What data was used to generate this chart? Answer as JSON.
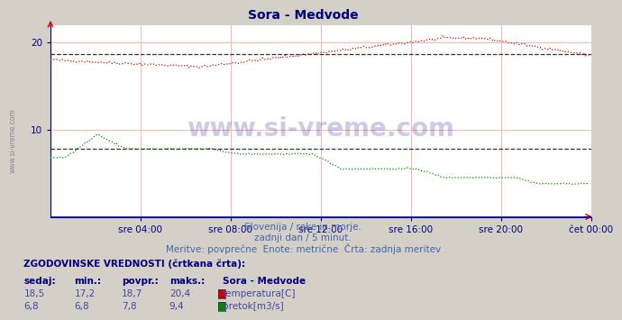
{
  "title": "Sora - Medvode",
  "title_color": "#000080",
  "background_color": "#d4d0c8",
  "plot_bg_color": "#ffffff",
  "grid_color": "#ffb0b0",
  "axis_color": "#000080",
  "text_color": "#000080",
  "subtitle_color": "#4466aa",
  "xlabel_ticks": [
    "sre 04:00",
    "sre 08:00",
    "sre 12:00",
    "sre 16:00",
    "sre 20:00",
    "čet 00:00"
  ],
  "xlim": [
    0,
    288
  ],
  "ylim": [
    0,
    22
  ],
  "subtitle1": "Slovenija / reke in morje.",
  "subtitle2": "zadnji dan / 5 minut.",
  "subtitle3": "Meritve: povprečne  Enote: metrične  Črta: zadnja meritev",
  "legend_title": "ZGODOVINSKE VREDNOSTI (črtkana črta):",
  "legend_headers": [
    "sedaj:",
    "min.:",
    "povpr.:",
    "maks.:",
    "Sora - Medvode"
  ],
  "legend_row1": [
    "18,5",
    "17,2",
    "18,7",
    "20,4",
    "temperatura[C]"
  ],
  "legend_row2": [
    "6,8",
    "6,8",
    "7,8",
    "9,4",
    "pretok[m3/s]"
  ],
  "temp_color": "#cc0000",
  "flow_color": "#008800",
  "avg_color": "#404040",
  "avg_temp": 18.7,
  "avg_flow": 7.8,
  "watermark": "www.si-vreme.com",
  "left_watermark": "www.si-vreme.com"
}
